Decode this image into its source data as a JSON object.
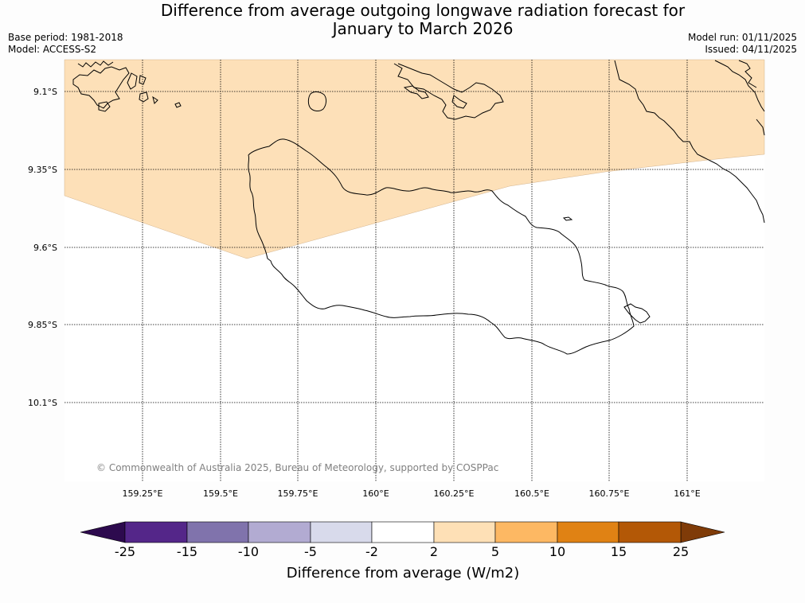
{
  "title": {
    "line1": "Difference from average outgoing longwave radiation forecast for",
    "line2": "January to March 2026"
  },
  "meta": {
    "base_period": "Base period: 1981-2018",
    "model": "Model: ACCESS-S2",
    "model_run": "Model run: 01/11/2025",
    "issued": "Issued: 04/11/2025"
  },
  "map": {
    "lat_labels": [
      "9.1°S",
      "9.35°S",
      "9.6°S",
      "9.85°S",
      "10.1°S"
    ],
    "lon_labels": [
      "159.25°E",
      "159.5°E",
      "159.75°E",
      "160°E",
      "160.25°E",
      "160.5°E",
      "160.75°E",
      "161°E"
    ],
    "copyright": "© Commonwealth of Australia 2025, Bureau of Meteorology, supported by COSPPac",
    "shaded_category": "2 to 5",
    "shaded_color": "#fde0b8"
  },
  "colorbar": {
    "ticks": [
      "-25",
      "-15",
      "-10",
      "-5",
      "-2",
      "2",
      "5",
      "10",
      "15",
      "25"
    ],
    "colors": [
      "#2d0a4e",
      "#542689",
      "#8073ac",
      "#b2abd2",
      "#d8daeb",
      "#ffffff",
      "#fee0b6",
      "#fdb863",
      "#e08214",
      "#b35806",
      "#7f3b08"
    ],
    "label": "Difference from average (W/m2)"
  }
}
